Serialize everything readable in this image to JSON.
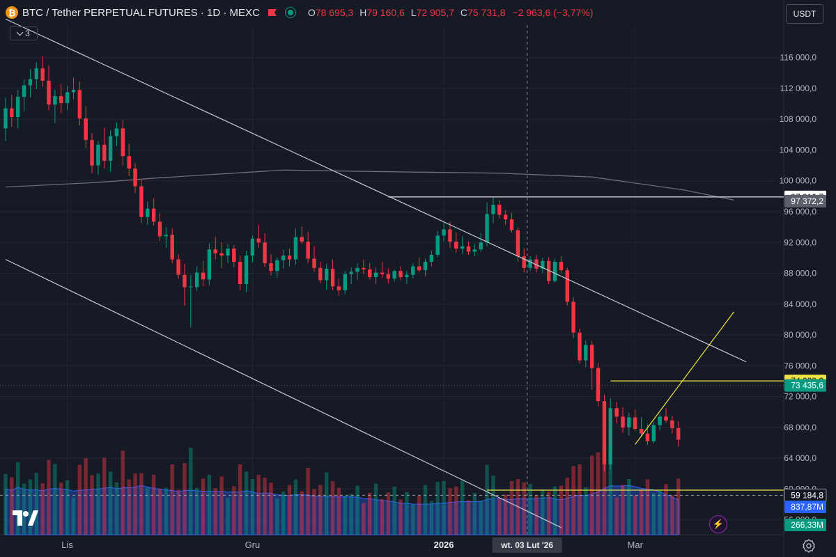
{
  "header": {
    "title": "BTC / Tether PERPETUAL FUTURES · 1D · MEXC",
    "btc_glyph": "₿",
    "ohlc": {
      "o_key": "O",
      "o": "78 695,3",
      "h_key": "H",
      "h": "79 160,6",
      "l_key": "L",
      "l": "72 905,7",
      "c_key": "C",
      "c": "75 731,8",
      "change": "−2 963,6 (−3,77%)"
    }
  },
  "layers_button": {
    "count": "3"
  },
  "currency_button": {
    "label": "USDT"
  },
  "colors": {
    "bg": "#161a25",
    "up": "#089981",
    "down": "#f23645",
    "grid": "#232632",
    "trendline": "#c9cbd2",
    "yellow": "#f0e442",
    "ma": "#6b6f7b",
    "volume_ma": "#2962ff"
  },
  "chart_data": {
    "type": "candlestick",
    "title": "BTC / Tether PERPETUAL FUTURES · 1D · MEXC",
    "y_axis": {
      "position": "right",
      "range": [
        54000,
        120000
      ],
      "ticks": [
        "116 000,0",
        "112 000,0",
        "108 000,0",
        "104 000,0",
        "100 000,0",
        "96 000,0",
        "92 000,0",
        "88 000,0",
        "84 000,0",
        "80 000,0",
        "76 000,0",
        "72 000,0",
        "68 000,0",
        "64 000,0",
        "60 000,0",
        "56 000,0"
      ],
      "tick_values": [
        116000,
        112000,
        108000,
        104000,
        100000,
        96000,
        92000,
        88000,
        84000,
        80000,
        76000,
        72000,
        68000,
        64000,
        60000,
        56000
      ]
    },
    "x_axis": {
      "ticks": [
        "Lis",
        "Gru",
        "2026",
        "Mar"
      ],
      "crosshair_label": "wt. 03 Lut '26"
    },
    "price_labels": [
      {
        "text": "97 910,7",
        "value": 97910.7,
        "style": "white"
      },
      {
        "text": "97 372,2",
        "value": 97372.2,
        "style": "grey"
      },
      {
        "text": "74 028,2",
        "value": 74028.2,
        "style": "yellow"
      },
      {
        "text": "73 435,6",
        "value": 73435.6,
        "style": "green"
      },
      {
        "text": "59 184,8",
        "value": 59184.8,
        "style": "dark"
      },
      {
        "text": "837,87M",
        "value": null,
        "style": "blue"
      },
      {
        "text": "266,33M",
        "value": null,
        "style": "green"
      }
    ],
    "horizontal_lines": [
      {
        "value": 97910.7,
        "from_index": 62,
        "color": "white"
      },
      {
        "value": 74028.2,
        "from_index": 98,
        "color": "yellow"
      },
      {
        "value": 59850,
        "from_index": 78,
        "color": "yellow"
      }
    ],
    "trendlines": [
      {
        "from": [
          0,
          121000
        ],
        "to": [
          120,
          76500
        ],
        "color": "white"
      },
      {
        "from": [
          0,
          89800
        ],
        "to": [
          90,
          55000
        ],
        "color": "white"
      },
      {
        "from": [
          102,
          65800
        ],
        "to": [
          118,
          83000
        ],
        "color": "yellow"
      }
    ],
    "ohlc": [
      [
        106800,
        110800,
        105200,
        109400
      ],
      [
        109400,
        111200,
        107000,
        108300
      ],
      [
        108300,
        111800,
        106800,
        110900
      ],
      [
        110900,
        113200,
        109000,
        112400
      ],
      [
        112400,
        114500,
        110800,
        113200
      ],
      [
        113200,
        115400,
        111900,
        114600
      ],
      [
        114600,
        116200,
        112200,
        113000
      ],
      [
        113000,
        115000,
        109200,
        109900
      ],
      [
        109900,
        111800,
        107500,
        111000
      ],
      [
        111000,
        112600,
        108800,
        110100
      ],
      [
        110100,
        112300,
        109200,
        111500
      ],
      [
        111500,
        113400,
        110600,
        111800
      ],
      [
        111800,
        112900,
        107200,
        108100
      ],
      [
        108100,
        109700,
        104200,
        105300
      ],
      [
        105300,
        106200,
        101000,
        102000
      ],
      [
        102000,
        105200,
        100800,
        104700
      ],
      [
        104700,
        106900,
        101600,
        102600
      ],
      [
        102600,
        106600,
        101200,
        105800
      ],
      [
        105800,
        107600,
        104500,
        106800
      ],
      [
        106800,
        107900,
        102000,
        103200
      ],
      [
        103200,
        104800,
        100600,
        101600
      ],
      [
        101600,
        102300,
        98400,
        99300
      ],
      [
        99300,
        100200,
        94500,
        95300
      ],
      [
        95300,
        97300,
        94300,
        96400
      ],
      [
        96400,
        97700,
        94200,
        94700
      ],
      [
        94700,
        95800,
        92200,
        92800
      ],
      [
        92800,
        94000,
        91300,
        93000
      ],
      [
        93000,
        93800,
        89300,
        89800
      ],
      [
        89800,
        90500,
        87300,
        87800
      ],
      [
        87800,
        89200,
        83800,
        86200
      ],
      [
        86200,
        87800,
        81000,
        86300
      ],
      [
        86200,
        88900,
        85700,
        88100
      ],
      [
        88100,
        89600,
        86300,
        87200
      ],
      [
        87200,
        91900,
        86400,
        91100
      ],
      [
        91100,
        92700,
        89800,
        90600
      ],
      [
        90600,
        92000,
        88700,
        90300
      ],
      [
        90300,
        91800,
        89300,
        91200
      ],
      [
        91200,
        91700,
        88800,
        89500
      ],
      [
        89500,
        90300,
        85800,
        86600
      ],
      [
        86600,
        90900,
        85500,
        90300
      ],
      [
        90300,
        92900,
        89400,
        92500
      ],
      [
        92500,
        94300,
        91300,
        92000
      ],
      [
        92000,
        93200,
        88800,
        89300
      ],
      [
        89300,
        90500,
        87700,
        88300
      ],
      [
        88300,
        90100,
        87400,
        89700
      ],
      [
        89700,
        91100,
        88600,
        90300
      ],
      [
        90300,
        91200,
        88900,
        89800
      ],
      [
        89800,
        93800,
        89100,
        92700
      ],
      [
        92700,
        94100,
        91800,
        92100
      ],
      [
        92100,
        93400,
        89300,
        89900
      ],
      [
        89900,
        91500,
        88200,
        88700
      ],
      [
        88700,
        89500,
        86700,
        87100
      ],
      [
        87100,
        89200,
        85900,
        88600
      ],
      [
        88600,
        89800,
        85800,
        86300
      ],
      [
        86300,
        87300,
        85100,
        85800
      ],
      [
        85800,
        88300,
        85300,
        87900
      ],
      [
        87900,
        88800,
        86600,
        88200
      ],
      [
        88200,
        89300,
        87100,
        88700
      ],
      [
        88700,
        89800,
        87900,
        88500
      ],
      [
        88500,
        89300,
        87200,
        87500
      ],
      [
        87500,
        88800,
        86600,
        88100
      ],
      [
        88100,
        89500,
        87400,
        87900
      ],
      [
        87900,
        88600,
        86700,
        87300
      ],
      [
        87300,
        88500,
        86900,
        88300
      ],
      [
        88300,
        88900,
        87100,
        87500
      ],
      [
        87500,
        88300,
        86600,
        87800
      ],
      [
        87800,
        89300,
        87300,
        88900
      ],
      [
        88900,
        90100,
        88100,
        88400
      ],
      [
        88400,
        89900,
        87600,
        89500
      ],
      [
        89500,
        91000,
        88900,
        90400
      ],
      [
        90400,
        93500,
        90100,
        92900
      ],
      [
        92900,
        94600,
        92100,
        93700
      ],
      [
        93700,
        94700,
        91300,
        92100
      ],
      [
        92100,
        93300,
        90700,
        91200
      ],
      [
        91200,
        92800,
        90500,
        91500
      ],
      [
        91500,
        92100,
        90400,
        90800
      ],
      [
        90800,
        91800,
        90200,
        91100
      ],
      [
        91100,
        93200,
        90800,
        92000
      ],
      [
        92000,
        97200,
        91500,
        95700
      ],
      [
        95700,
        97900,
        94500,
        96900
      ],
      [
        96900,
        97500,
        95100,
        95600
      ],
      [
        95600,
        96200,
        94300,
        95000
      ],
      [
        95000,
        95800,
        93300,
        93600
      ],
      [
        93600,
        94000,
        89500,
        90200
      ],
      [
        90200,
        91200,
        88100,
        88700
      ],
      [
        88700,
        90200,
        88300,
        89800
      ],
      [
        89800,
        90400,
        88100,
        88600
      ],
      [
        88600,
        90000,
        88000,
        89600
      ],
      [
        89600,
        90100,
        86600,
        87000
      ],
      [
        87000,
        89900,
        86800,
        89500
      ],
      [
        89500,
        90200,
        88000,
        88400
      ],
      [
        88400,
        88700,
        83800,
        84300
      ],
      [
        84300,
        84900,
        79600,
        80300
      ],
      [
        80300,
        80800,
        76300,
        76700
      ],
      [
        76700,
        79300,
        75800,
        78700
      ],
      [
        78700,
        79200,
        72900,
        75700
      ],
      [
        75700,
        76400,
        70700,
        71400
      ],
      [
        71400,
        72300,
        62300,
        63200
      ],
      [
        63200,
        71800,
        62500,
        70500
      ],
      [
        70500,
        71300,
        68500,
        69400
      ],
      [
        69400,
        70600,
        67300,
        68000
      ],
      [
        68000,
        69900,
        66900,
        69300
      ],
      [
        69300,
        70300,
        67500,
        67800
      ],
      [
        67800,
        69300,
        66800,
        67200
      ],
      [
        67200,
        68400,
        65700,
        66200
      ],
      [
        66200,
        68700,
        65900,
        68300
      ],
      [
        68300,
        69800,
        67600,
        69400
      ],
      [
        69400,
        70500,
        68600,
        68900
      ],
      [
        68900,
        69500,
        67200,
        67900
      ],
      [
        67900,
        68800,
        65500,
        66400
      ]
    ],
    "volume_ma_line": "smooth blue volume moving average",
    "ma_line": "grey long-term moving average"
  }
}
